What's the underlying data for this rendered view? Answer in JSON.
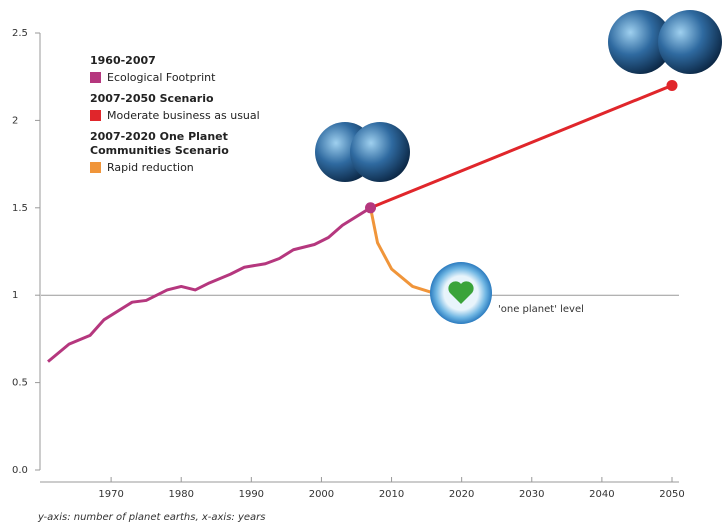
{
  "chart_data": {
    "type": "line",
    "ylim": [
      0,
      2.5
    ],
    "yticks": [
      {
        "value": 0,
        "label": "0.0"
      },
      0.5,
      1,
      1.5,
      2,
      2.5
    ],
    "xlim": [
      1960,
      2051
    ],
    "xticks": [
      1970,
      1980,
      1990,
      2000,
      2010,
      2020,
      2030,
      2040,
      2050
    ],
    "reference_line": {
      "value": 1,
      "label": "'one planet' level"
    },
    "series": [
      {
        "period": "1960-2007",
        "name": "Ecological Footprint",
        "color": "#b5377e",
        "x": [
          1961,
          1964,
          1967,
          1969,
          1973,
          1975,
          1978,
          1980,
          1982,
          1984,
          1987,
          1989,
          1992,
          1994,
          1996,
          1999,
          2001,
          2003,
          2007
        ],
        "values": [
          0.62,
          0.72,
          0.77,
          0.86,
          0.96,
          0.97,
          1.03,
          1.05,
          1.03,
          1.07,
          1.12,
          1.16,
          1.18,
          1.21,
          1.26,
          1.29,
          1.33,
          1.4,
          1.5
        ]
      },
      {
        "period": "2007-2050 Scenario",
        "name": "Moderate business as usual",
        "color": "#e0262b",
        "x": [
          2007,
          2050
        ],
        "values": [
          1.5,
          2.2
        ]
      },
      {
        "period": "2007-2020 One Planet Communities Scenario",
        "name": "Rapid reduction",
        "color": "#f0953a",
        "x": [
          2007,
          2008,
          2010,
          2013,
          2017
        ],
        "values": [
          1.5,
          1.3,
          1.15,
          1.05,
          1.0
        ]
      }
    ],
    "footnote": "y-axis: number of planet earths, x-axis: years"
  }
}
